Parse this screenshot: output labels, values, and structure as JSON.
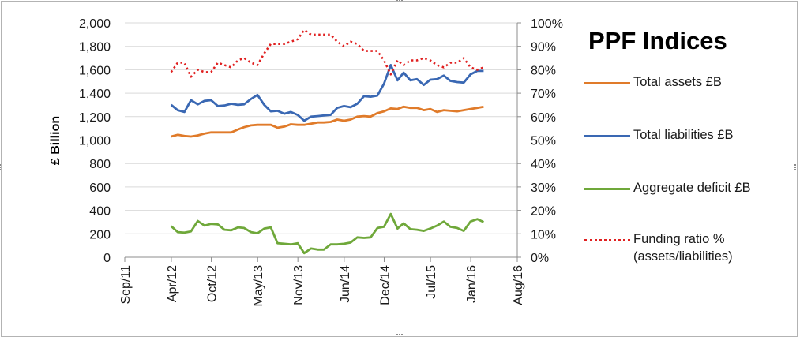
{
  "chart_data": {
    "type": "line",
    "title": "PPF Indices",
    "ylabel": "£ Billion",
    "y2label": "",
    "xlabel": "",
    "ylim": [
      0,
      2000
    ],
    "y2lim": [
      0,
      1
    ],
    "y_ticks": [
      "0",
      "200",
      "400",
      "600",
      "800",
      "1,000",
      "1,200",
      "1,400",
      "1,600",
      "1,800",
      "2,000"
    ],
    "y2_ticks": [
      "0%",
      "10%",
      "20%",
      "30%",
      "40%",
      "50%",
      "60%",
      "70%",
      "80%",
      "90%",
      "100%"
    ],
    "x_ticks": [
      "Sep/11",
      "Apr/12",
      "Oct/12",
      "May/13",
      "Nov/13",
      "Jun/14",
      "Dec/14",
      "Jul/15",
      "Jan/16",
      "Aug/16"
    ],
    "x_tick_dates": [
      "2011-09-01",
      "2012-04-01",
      "2012-10-01",
      "2013-05-01",
      "2013-11-01",
      "2014-06-01",
      "2014-12-01",
      "2015-07-01",
      "2016-01-01",
      "2016-08-01"
    ],
    "x_range": [
      "2011-09-01",
      "2016-08-01"
    ],
    "grid": "horizontal",
    "legend_position": "right",
    "x": [
      "2012-03-31",
      "2012-04-30",
      "2012-05-31",
      "2012-06-30",
      "2012-07-31",
      "2012-08-31",
      "2012-09-30",
      "2012-10-31",
      "2012-11-30",
      "2012-12-31",
      "2013-01-31",
      "2013-02-28",
      "2013-03-31",
      "2013-04-30",
      "2013-05-31",
      "2013-06-30",
      "2013-07-31",
      "2013-08-31",
      "2013-09-30",
      "2013-10-31",
      "2013-11-30",
      "2013-12-31",
      "2014-01-31",
      "2014-02-28",
      "2014-03-31",
      "2014-04-30",
      "2014-05-31",
      "2014-06-30",
      "2014-07-31",
      "2014-08-31",
      "2014-09-30",
      "2014-10-31",
      "2014-11-30",
      "2014-12-31",
      "2015-01-31",
      "2015-02-28",
      "2015-03-31",
      "2015-04-30",
      "2015-05-31",
      "2015-06-30",
      "2015-07-31",
      "2015-08-31",
      "2015-09-30",
      "2015-10-31",
      "2015-11-30",
      "2015-12-31",
      "2016-01-31",
      "2016-02-29"
    ],
    "series": [
      {
        "name": "Total assets £B",
        "axis": "left",
        "color": "#e07b2a",
        "dash": "solid",
        "values": [
          1030,
          1045,
          1035,
          1030,
          1040,
          1055,
          1065,
          1065,
          1065,
          1065,
          1090,
          1110,
          1125,
          1130,
          1130,
          1130,
          1105,
          1115,
          1135,
          1130,
          1130,
          1140,
          1150,
          1150,
          1155,
          1175,
          1165,
          1175,
          1200,
          1205,
          1200,
          1230,
          1245,
          1270,
          1265,
          1285,
          1275,
          1275,
          1255,
          1265,
          1240,
          1255,
          1250,
          1245,
          1255,
          1265,
          1275,
          1285
        ]
      },
      {
        "name": "Total liabilities £B",
        "axis": "left",
        "color": "#3a68b3",
        "dash": "solid",
        "values": [
          1300,
          1255,
          1240,
          1340,
          1305,
          1335,
          1340,
          1290,
          1295,
          1310,
          1300,
          1305,
          1350,
          1385,
          1300,
          1245,
          1250,
          1225,
          1240,
          1215,
          1165,
          1200,
          1205,
          1210,
          1215,
          1275,
          1290,
          1280,
          1310,
          1375,
          1370,
          1380,
          1480,
          1640,
          1510,
          1575,
          1510,
          1520,
          1470,
          1515,
          1520,
          1550,
          1505,
          1495,
          1490,
          1560,
          1590,
          1590
        ]
      },
      {
        "name": "Aggregate deficit £B",
        "axis": "left",
        "color": "#6fa83a",
        "dash": "solid",
        "values": [
          265,
          215,
          210,
          220,
          310,
          270,
          285,
          280,
          235,
          230,
          255,
          250,
          215,
          205,
          245,
          255,
          120,
          115,
          110,
          120,
          35,
          75,
          65,
          65,
          110,
          110,
          115,
          125,
          170,
          165,
          170,
          250,
          260,
          370,
          245,
          290,
          240,
          235,
          225,
          245,
          270,
          305,
          260,
          250,
          225,
          305,
          325,
          300
        ]
      },
      {
        "name": "Funding ratio % (assets/liabilities)",
        "axis": "right",
        "color": "#e02020",
        "dash": "dotted",
        "values": [
          0.79,
          0.83,
          0.83,
          0.77,
          0.8,
          0.79,
          0.79,
          0.83,
          0.82,
          0.81,
          0.84,
          0.85,
          0.83,
          0.82,
          0.87,
          0.91,
          0.91,
          0.91,
          0.92,
          0.93,
          0.97,
          0.95,
          0.95,
          0.95,
          0.95,
          0.92,
          0.9,
          0.92,
          0.91,
          0.88,
          0.88,
          0.88,
          0.84,
          0.78,
          0.84,
          0.82,
          0.84,
          0.84,
          0.85,
          0.84,
          0.82,
          0.81,
          0.83,
          0.83,
          0.85,
          0.81,
          0.8,
          0.81
        ]
      }
    ]
  }
}
